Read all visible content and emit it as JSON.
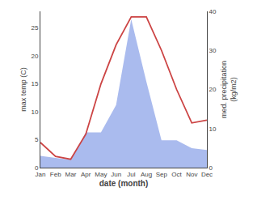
{
  "chart_data": {
    "type": "line",
    "categories": [
      "Jan",
      "Feb",
      "Mar",
      "Apr",
      "May",
      "Jun",
      "Jul",
      "Aug",
      "Sep",
      "Oct",
      "Nov",
      "Dec"
    ],
    "x_label": "date (month)",
    "y_label": "max temp (C)",
    "y2_label": "med. precipitation\n(kg/m2)",
    "series": [
      {
        "type": "area",
        "axis": "y2",
        "color": "#aabbee",
        "values": [
          3.0,
          2.5,
          2.0,
          9.0,
          9.0,
          16.0,
          38.0,
          22.0,
          7.0,
          7.0,
          5.0,
          4.5
        ]
      },
      {
        "type": "line",
        "color": "#cc4444",
        "values": [
          4.5,
          2.0,
          1.5,
          6.0,
          15.0,
          22.0,
          27.0,
          27.0,
          21.0,
          14.0,
          8.0,
          8.5
        ]
      }
    ],
    "ylim": [
      0,
      28
    ],
    "yticks": [
      0,
      5,
      10,
      15,
      20,
      25
    ],
    "y2lim": [
      0,
      40
    ],
    "y2ticks": [
      0,
      10,
      20,
      30,
      40
    ],
    "grid": false
  }
}
